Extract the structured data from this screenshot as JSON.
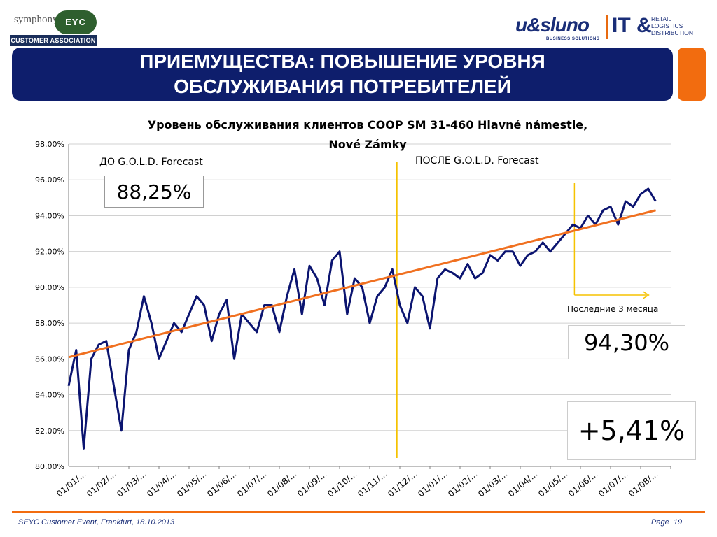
{
  "header": {
    "left_logo": {
      "brand": "symphony",
      "badge": "EYC",
      "bar": "CUSTOMER ASSOCIATION"
    },
    "right_logo": {
      "brand": "u&sluno",
      "sub": "BUSINESS SOLUTIONS",
      "it": "IT &",
      "tagline": [
        "RETAIL",
        "LOGISTICS",
        "DISTRIBUTION"
      ]
    }
  },
  "title": "ПРИЕМУЩЕСТВА: ПОВЫШЕНИЕ УРОВНЯ\nОБСЛУЖИВАНИЯ ПОТРЕБИТЕЛЕЙ",
  "colors": {
    "title_band": "#0e1e6c",
    "accent": "#f26c0f",
    "series": "#0b1470",
    "trend": "#f07020",
    "divider": "#f5c200"
  },
  "chart_data": {
    "type": "line",
    "title": "Уровень обслуживания клиентов COOP SM 31-460 Hlavné námestie, Nové Zámky",
    "ylim": [
      0.8,
      0.98
    ],
    "y_ticks": [
      "80.00%",
      "82.00%",
      "84.00%",
      "86.00%",
      "88.00%",
      "90.00%",
      "92.00%",
      "94.00%",
      "96.00%",
      "98.00%"
    ],
    "x_ticks": [
      "01/01/...",
      "01/02/...",
      "01/03/...",
      "01/04/...",
      "01/05/...",
      "01/06/...",
      "01/07/...",
      "01/08/...",
      "01/09/...",
      "01/10/...",
      "01/11/...",
      "01/12/...",
      "01/01/...",
      "01/02/...",
      "01/03/...",
      "01/04/...",
      "01/05/...",
      "01/06/...",
      "01/07/...",
      "01/08/..."
    ],
    "series": [
      {
        "x": [
          0,
          0.25,
          0.5,
          0.75,
          1.0,
          1.25,
          1.5,
          1.75,
          2.0,
          2.25,
          2.5,
          2.75,
          3.0,
          3.25,
          3.5,
          3.75,
          4.0,
          4.25,
          4.5,
          4.75,
          5.0,
          5.25,
          5.5,
          5.75,
          6.0,
          6.25,
          6.5,
          6.75,
          7.0,
          7.25,
          7.5,
          7.75,
          8.0,
          8.25,
          8.5,
          8.75,
          9.0,
          9.25,
          9.5,
          9.75,
          10.0,
          10.25,
          10.5,
          10.75,
          11.0,
          11.25,
          11.5,
          11.75,
          12.0,
          12.25,
          12.5,
          12.75,
          13.0,
          13.25,
          13.5,
          13.75,
          14.0,
          14.25,
          14.5,
          14.75,
          15.0,
          15.25,
          15.5,
          15.75,
          16.0,
          16.25,
          16.5,
          16.75,
          17.0,
          17.25,
          17.5,
          17.75,
          18.0,
          18.25,
          18.5,
          18.75,
          19.0,
          19.25,
          19.5
        ],
        "values": [
          0.845,
          0.865,
          0.81,
          0.86,
          0.868,
          0.87,
          0.845,
          0.82,
          0.865,
          0.875,
          0.895,
          0.88,
          0.86,
          0.87,
          0.88,
          0.875,
          0.885,
          0.895,
          0.89,
          0.87,
          0.885,
          0.893,
          0.86,
          0.885,
          0.88,
          0.875,
          0.89,
          0.89,
          0.875,
          0.895,
          0.91,
          0.885,
          0.912,
          0.905,
          0.89,
          0.915,
          0.92,
          0.885,
          0.905,
          0.9,
          0.88,
          0.895,
          0.9,
          0.91,
          0.89,
          0.88,
          0.9,
          0.895,
          0.877,
          0.905,
          0.91,
          0.908,
          0.905,
          0.913,
          0.905,
          0.908,
          0.918,
          0.915,
          0.92,
          0.92,
          0.912,
          0.918,
          0.92,
          0.925,
          0.92,
          0.925,
          0.93,
          0.935,
          0.933,
          0.94,
          0.935,
          0.943,
          0.945,
          0.935,
          0.948,
          0.945,
          0.952,
          0.955,
          0.948
        ]
      },
      {
        "x": [
          0,
          19.5
        ],
        "values": [
          0.861,
          0.943
        ]
      }
    ],
    "annotations": {
      "before_label": "ДО G.O.L.D.  Forecast",
      "before_value": "88,25%",
      "after_label": "ПОСЛЕ G.O.L.D. Forecast",
      "last3_label": "Последние 3 месяца",
      "last3_value": "94,30%",
      "delta": "+5,41%"
    },
    "grid": true
  },
  "footer": {
    "event": "SEYC Customer Event, Frankfurt, 18.10.2013",
    "page_label": "Page",
    "page_num": "19"
  }
}
